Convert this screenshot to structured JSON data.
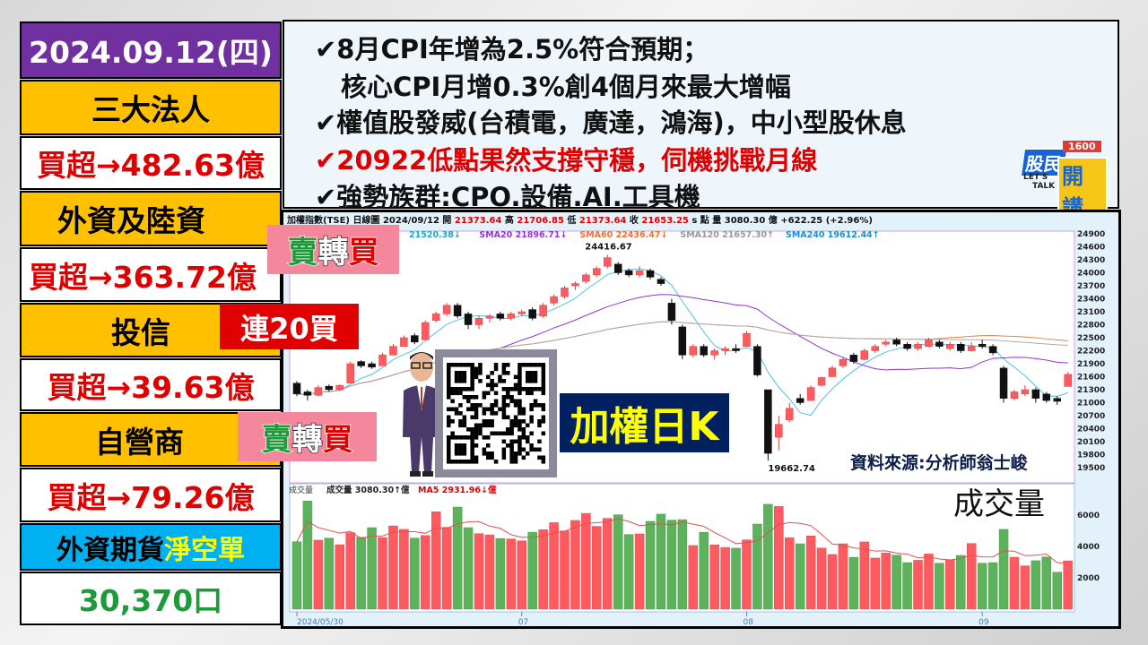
{
  "left": {
    "date": "2024.09.12(四)",
    "institutional_title": "三大法人",
    "institutional_net": "買超→482.63億",
    "foreign_title": "外資及陸資",
    "foreign_net": "買超→363.72億",
    "trust_title": "投信",
    "trust_net": "買超→39.63億",
    "dealer_title": "自營商",
    "dealer_net": "買超→79.26億",
    "futures_title_a": "外資期貨",
    "futures_title_b": "淨空單",
    "futures_value": "30,370口"
  },
  "callouts": {
    "foreign": {
      "a": "賣",
      "b": "轉",
      "c": "買"
    },
    "trust": "連20買",
    "dealer": {
      "a": "賣",
      "b": "轉",
      "c": "買"
    }
  },
  "news": [
    {
      "text": "✔8月CPI年增為2.5%符合預期；",
      "color": "#111111"
    },
    {
      "text": "　核心CPI月增0.3%創4個月來最大增幅",
      "color": "#111111"
    },
    {
      "text": "✔權值股發威(台積電，廣達，鴻海)，中小型股休息",
      "color": "#111111"
    },
    {
      "text": "✔20922低點果然支撐守穩，伺機挑戰月線",
      "color": "#e00000"
    },
    {
      "text": "✔強勢族群:CPO.設備.AI.工具機",
      "color": "#111111"
    }
  ],
  "logo": {
    "main": "股民",
    "sub": "開講",
    "num": "1600",
    "tag1": "LET'S",
    "tag2": "TALK"
  },
  "overlay": {
    "title": "加權日K",
    "source": "資料來源:分析師翁士峻",
    "volume_title": "成交量"
  },
  "colors": {
    "up": "#FF5A5F",
    "down": "#5CB35C",
    "sma5": "#4fc3e6",
    "sma20": "#9b30d9",
    "sma60": "#f08040",
    "sma120": "#aaaaaa",
    "title_bg": "#002060",
    "title_fg": "#FFFF00"
  },
  "chart_data": {
    "type": "candlestick",
    "header": {
      "name": "加權指數(TSE)",
      "period": "日線圖",
      "date": "2024/09/12",
      "open_label": "開",
      "open": "21373.64",
      "high_label": "高",
      "high": "21706.85",
      "low_label": "低",
      "low": "21373.64",
      "close_label": "收",
      "close": "21653.25",
      "unit": "s 點",
      "vol_label": "量",
      "vol": "3080.30 億",
      "change": "+622.25 (+2.96%)"
    },
    "ma_labels": [
      {
        "text": "21520.38↓",
        "color": "#1aa7c9"
      },
      {
        "text": "SMA20 21896.71↓",
        "color": "#9b30d9"
      },
      {
        "text": "SMA60 22436.47↓",
        "color": "#f07030"
      },
      {
        "text": "SMA120 21657.30↑",
        "color": "#999999"
      },
      {
        "text": "SMA240 19612.44↑",
        "color": "#1a8fd0"
      }
    ],
    "vol_header": {
      "label": "成交量",
      "vol": "成交量 3080.30↑億",
      "ma5": "MA5 2931.96↓億"
    },
    "price_ticks": [
      24900,
      24600,
      24300,
      24000,
      23700,
      23400,
      23100,
      22800,
      22500,
      22200,
      21900,
      21600,
      21300,
      21000,
      20700,
      20400,
      20100,
      19800,
      19500
    ],
    "volume_ticks": [
      6000,
      4000,
      2000
    ],
    "ylim": [
      19500,
      24900
    ],
    "x_labels": [
      {
        "i": 0,
        "text": "2024/05/30"
      },
      {
        "i": 21,
        "text": "07"
      },
      {
        "i": 42,
        "text": "08"
      },
      {
        "i": 64,
        "text": "09"
      }
    ],
    "annotations": [
      {
        "i": 29,
        "text": "24416.67",
        "pos": "above"
      },
      {
        "i": 44,
        "text": "19662.74",
        "pos": "below"
      }
    ],
    "ohlc": [
      [
        21450,
        21500,
        21150,
        21200
      ],
      [
        21250,
        21300,
        21050,
        21170
      ],
      [
        21170,
        21400,
        21150,
        21350
      ],
      [
        21380,
        21420,
        21250,
        21300
      ],
      [
        21300,
        21420,
        21280,
        21400
      ],
      [
        21450,
        21950,
        21450,
        21900
      ],
      [
        21950,
        21980,
        21800,
        21850
      ],
      [
        21900,
        21950,
        21780,
        21820
      ],
      [
        21850,
        22150,
        21850,
        22100
      ],
      [
        22100,
        22350,
        22100,
        22300
      ],
      [
        22300,
        22550,
        22300,
        22500
      ],
      [
        22550,
        22600,
        22350,
        22400
      ],
      [
        22450,
        22900,
        22450,
        22850
      ],
      [
        22900,
        23100,
        22850,
        23050
      ],
      [
        23050,
        23300,
        23000,
        23250
      ],
      [
        23250,
        23300,
        22950,
        23000
      ],
      [
        23050,
        23100,
        22700,
        22800
      ],
      [
        22800,
        23000,
        22700,
        22950
      ],
      [
        22950,
        23050,
        22850,
        23000
      ],
      [
        23050,
        23100,
        22900,
        22950
      ],
      [
        22950,
        23100,
        22900,
        23050
      ],
      [
        23050,
        23150,
        23000,
        23100
      ],
      [
        23150,
        23200,
        22900,
        22950
      ],
      [
        23000,
        23300,
        22950,
        23250
      ],
      [
        23300,
        23500,
        23250,
        23450
      ],
      [
        23450,
        23700,
        23400,
        23650
      ],
      [
        23700,
        23800,
        23600,
        23750
      ],
      [
        23800,
        24000,
        23750,
        23950
      ],
      [
        23950,
        24150,
        23900,
        24100
      ],
      [
        24150,
        24416.67,
        24100,
        24350
      ],
      [
        24200,
        24250,
        23950,
        24000
      ],
      [
        24050,
        24100,
        23900,
        23950
      ],
      [
        23950,
        24150,
        23900,
        24050
      ],
      [
        24050,
        24100,
        23850,
        23900
      ],
      [
        23850,
        23900,
        23700,
        23750
      ],
      [
        23300,
        23400,
        22800,
        22900
      ],
      [
        22750,
        22800,
        22000,
        22100
      ],
      [
        22100,
        22350,
        22050,
        22300
      ],
      [
        22300,
        22350,
        22050,
        22100
      ],
      [
        22100,
        22250,
        22000,
        22200
      ],
      [
        22200,
        22300,
        22100,
        22250
      ],
      [
        22250,
        22350,
        22150,
        22200
      ],
      [
        22300,
        22650,
        22300,
        22600
      ],
      [
        22300,
        22350,
        21600,
        21640
      ],
      [
        21300,
        21300,
        19662.74,
        19830
      ],
      [
        20200,
        20700,
        19900,
        20500
      ],
      [
        20600,
        21000,
        20550,
        20870
      ],
      [
        21100,
        21200,
        20950,
        21000
      ],
      [
        21050,
        21400,
        21050,
        21350
      ],
      [
        21400,
        21600,
        21380,
        21580
      ],
      [
        21600,
        21850,
        21600,
        21800
      ],
      [
        21850,
        22050,
        21800,
        22000
      ],
      [
        22100,
        22150,
        21900,
        21950
      ],
      [
        22000,
        22250,
        21980,
        22200
      ],
      [
        22200,
        22350,
        22150,
        22300
      ],
      [
        22350,
        22450,
        22300,
        22400
      ],
      [
        22450,
        22500,
        22300,
        22350
      ],
      [
        22350,
        22400,
        22200,
        22250
      ],
      [
        22250,
        22400,
        22200,
        22350
      ],
      [
        22300,
        22500,
        22280,
        22450
      ],
      [
        22400,
        22450,
        22250,
        22300
      ],
      [
        22250,
        22400,
        22200,
        22350
      ],
      [
        22350,
        22400,
        22150,
        22200
      ],
      [
        22200,
        22400,
        22180,
        22300
      ],
      [
        22350,
        22450,
        22250,
        22300
      ],
      [
        22300,
        22350,
        22100,
        22150
      ],
      [
        21800,
        21850,
        21000,
        21100
      ],
      [
        21100,
        21300,
        21050,
        21250
      ],
      [
        21200,
        21400,
        21150,
        21300
      ],
      [
        21300,
        21350,
        21000,
        21100
      ],
      [
        21200,
        21250,
        21000,
        21050
      ],
      [
        21100,
        21150,
        20950,
        21031
      ],
      [
        21373.64,
        21706.85,
        21373.64,
        21653.25
      ]
    ],
    "volume": [
      4300,
      6900,
      4400,
      4530,
      4110,
      4880,
      4590,
      5200,
      4570,
      5310,
      5090,
      4530,
      4700,
      6210,
      5220,
      6510,
      5200,
      4820,
      4740,
      4510,
      4480,
      4360,
      4910,
      5070,
      5520,
      4990,
      5660,
      6110,
      5280,
      5790,
      6020,
      4760,
      4800,
      5600,
      6060,
      5680,
      5710,
      4060,
      4910,
      4100,
      3940,
      3890,
      4420,
      5430,
      6690,
      6550,
      4550,
      4170,
      4670,
      3900,
      3490,
      4170,
      3310,
      4290,
      3260,
      3580,
      3450,
      2970,
      3120,
      3520,
      2930,
      3160,
      3430,
      4190,
      2930,
      2970,
      5090,
      3310,
      2760,
      3090,
      3330,
      2360,
      3080.3
    ]
  }
}
